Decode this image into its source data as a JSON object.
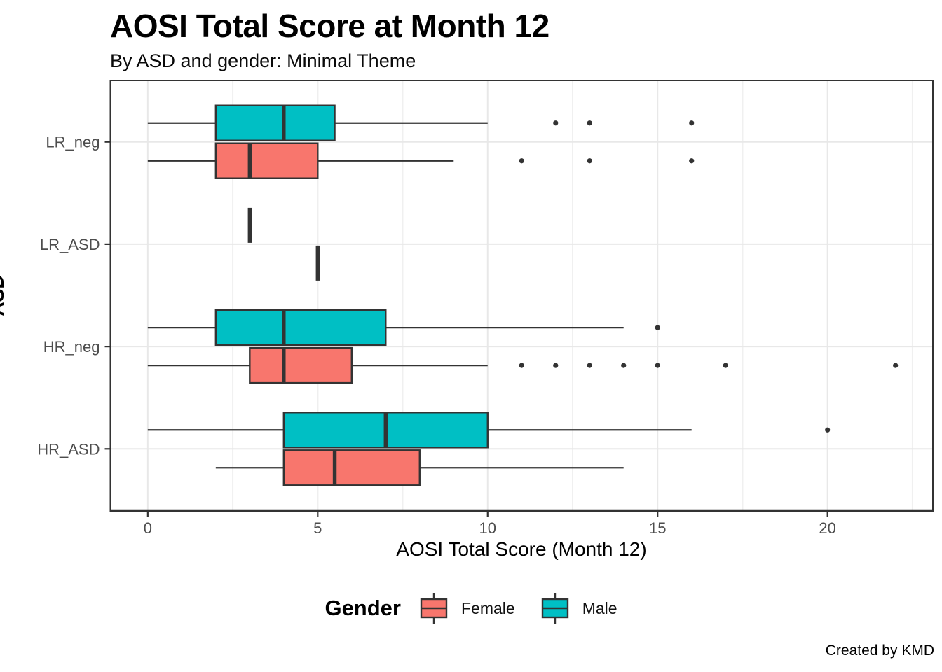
{
  "title": "AOSI Total Score at Month 12",
  "subtitle": "By ASD and gender: Minimal Theme",
  "caption": "Created by KMD",
  "axes": {
    "x_title": "AOSI Total Score (Month 12)",
    "y_title": "ASD"
  },
  "legend": {
    "title": "Gender",
    "items": [
      {
        "label": "Female",
        "color": "#F8766D"
      },
      {
        "label": "Male",
        "color": "#00BFC4"
      }
    ]
  },
  "colors": {
    "female": "#F8766D",
    "male": "#00BFC4",
    "stroke": "#333333",
    "grid": "#E8E8E8",
    "grid_minor": "#F0F0F0",
    "axis_text": "#4D4D4D",
    "panel_border": "#333333"
  },
  "chart_data": {
    "type": "boxplot",
    "orientation": "horizontal",
    "title": "AOSI Total Score at Month 12",
    "subtitle": "By ASD and gender: Minimal Theme",
    "xlabel": "AOSI Total Score (Month 12)",
    "ylabel": "ASD",
    "xlim": [
      -1.1,
      23.1
    ],
    "x_ticks": [
      0,
      5,
      10,
      15,
      20
    ],
    "x_minor_ticks": [
      2.5,
      7.5,
      12.5,
      17.5,
      22.5
    ],
    "categories_top_to_bottom": [
      "LR_neg",
      "LR_ASD",
      "HR_neg",
      "HR_ASD"
    ],
    "gender_order_within_category_top_to_bottom": [
      "Male",
      "Female"
    ],
    "groups": [
      {
        "category": "LR_neg",
        "gender": "Male",
        "min": 0,
        "q1": 2,
        "median": 4,
        "q3": 5.5,
        "max": 10,
        "outliers": [
          12,
          13,
          16
        ]
      },
      {
        "category": "LR_neg",
        "gender": "Female",
        "min": 0,
        "q1": 2,
        "median": 3,
        "q3": 5,
        "max": 9,
        "outliers": [
          11,
          13,
          16
        ]
      },
      {
        "category": "LR_ASD",
        "gender": "Male",
        "min": 3,
        "q1": 3,
        "median": 3,
        "q3": 3,
        "max": 3,
        "outliers": []
      },
      {
        "category": "LR_ASD",
        "gender": "Female",
        "min": 5,
        "q1": 5,
        "median": 5,
        "q3": 5,
        "max": 5,
        "outliers": []
      },
      {
        "category": "HR_neg",
        "gender": "Male",
        "min": 0,
        "q1": 2,
        "median": 4,
        "q3": 7,
        "max": 14,
        "outliers": [
          15
        ]
      },
      {
        "category": "HR_neg",
        "gender": "Female",
        "min": 0,
        "q1": 3,
        "median": 4,
        "q3": 6,
        "max": 10,
        "outliers": [
          11,
          12,
          13,
          14,
          15,
          17,
          22
        ]
      },
      {
        "category": "HR_ASD",
        "gender": "Male",
        "min": 0,
        "q1": 4,
        "median": 7,
        "q3": 10,
        "max": 16,
        "outliers": [
          20
        ]
      },
      {
        "category": "HR_ASD",
        "gender": "Female",
        "min": 2,
        "q1": 4,
        "median": 5.5,
        "q3": 8,
        "max": 14,
        "outliers": []
      }
    ],
    "legend_position": "bottom",
    "grid": true
  }
}
